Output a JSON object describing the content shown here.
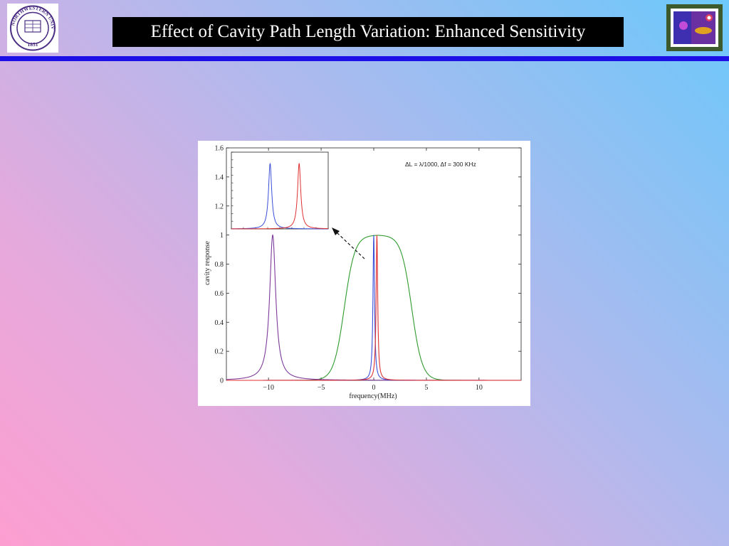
{
  "slide": {
    "title": "Effect of Cavity Path Length Variation: Enhanced Sensitivity",
    "logo_text": {
      "university": "NORTHWESTERN UNIVERSITY",
      "year": "1851"
    },
    "colors": {
      "title_bg": "#000000",
      "title_text": "#ffffff",
      "divider": "#1d10e6"
    }
  },
  "chart_data": [
    {
      "type": "line",
      "title": "",
      "annotation": "ΔL = λ/1000, Δf = 300 KHz",
      "xlabel": "frequency(MHz)",
      "ylabel": "cavity response",
      "xlim": [
        -14,
        14
      ],
      "ylim": [
        0,
        1.6
      ],
      "xticks": [
        -10,
        -5,
        0,
        5,
        10
      ],
      "xtick_labels": [
        "−10",
        "−5",
        "0",
        "5",
        "10"
      ],
      "yticks": [
        0,
        0.2,
        0.4,
        0.6,
        0.8,
        1,
        1.2,
        1.4,
        1.6
      ],
      "ytick_labels": [
        "0",
        "0.2",
        "0.4",
        "0.6",
        "0.8",
        "1",
        "1.2",
        "1.4",
        "1.6"
      ],
      "grid": false,
      "series": [
        {
          "color": "#2f9a2f",
          "shape": "flat-top",
          "center": 0.4,
          "plateau_halfwidth": 3.2,
          "edge_width": 0.5,
          "peak": 1.0
        },
        {
          "color": "#7d3a9a",
          "shape": "lorentzian",
          "center": -9.6,
          "fwhm": 0.7,
          "peak": 1.0
        },
        {
          "color": "#3a4fd8",
          "shape": "lorentzian",
          "center": 0.0,
          "fwhm": 0.18,
          "peak": 1.0
        },
        {
          "color": "#e03030",
          "shape": "lorentzian",
          "center": 0.3,
          "fwhm": 0.18,
          "peak": 1.0
        }
      ]
    },
    {
      "type": "line",
      "title": "",
      "xlim": [
        -0.5,
        0.5
      ],
      "ylim": [
        0,
        1
      ],
      "grid": false,
      "series": [
        {
          "color": "#3a4fd8",
          "shape": "lorentzian",
          "center": -0.1,
          "fwhm": 0.04,
          "peak": 0.85
        },
        {
          "color": "#e03030",
          "shape": "lorentzian",
          "center": 0.2,
          "fwhm": 0.04,
          "peak": 0.85
        }
      ]
    }
  ]
}
